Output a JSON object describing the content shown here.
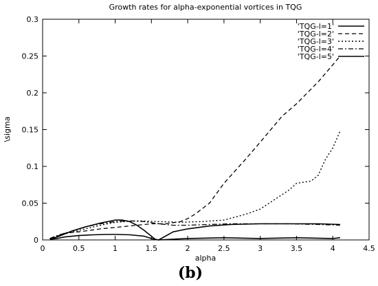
{
  "chart_data": {
    "type": "line",
    "title": "Growth rates for alpha-exponential vortices in TQG",
    "xlabel": "alpha",
    "ylabel": "\\sigma",
    "panel_label": "(b)",
    "xlim": [
      0,
      4.5
    ],
    "ylim": [
      0,
      0.3
    ],
    "xticks": [
      "0",
      "0.5",
      "1",
      "1.5",
      "2",
      "2.5",
      "3",
      "3.5",
      "4",
      "4.5"
    ],
    "yticks": [
      "0",
      "0.05",
      "0.1",
      "0.15",
      "0.2",
      "0.25",
      "0.3"
    ],
    "xtick_values": [
      0,
      0.5,
      1,
      1.5,
      2,
      2.5,
      3,
      3.5,
      4,
      4.5
    ],
    "ytick_values": [
      0,
      0.05,
      0.1,
      0.15,
      0.2,
      0.25,
      0.3
    ],
    "legend_position": "top-right",
    "series": [
      {
        "name": "'TQG-l=1'",
        "dash": "solid",
        "x": [
          0.1,
          0.2,
          0.3,
          0.5,
          0.7,
          0.9,
          1.0,
          1.2,
          1.4,
          1.5,
          1.55,
          1.6,
          1.8,
          2.0,
          2.5,
          3.0,
          3.5,
          4.0,
          4.1
        ],
        "y": [
          0.001,
          0.002,
          0.004,
          0.006,
          0.007,
          0.0075,
          0.0075,
          0.007,
          0.005,
          0.002,
          0.0005,
          0.0,
          0.001,
          0.002,
          0.003,
          0.002,
          0.003,
          0.002,
          0.003
        ]
      },
      {
        "name": "'TQG-l=2'",
        "dash": "dashed",
        "x": [
          0.1,
          0.2,
          0.3,
          0.5,
          0.8,
          1.0,
          1.3,
          1.5,
          1.7,
          1.9,
          2.0,
          2.1,
          2.3,
          2.5,
          2.8,
          3.0,
          3.3,
          3.5,
          3.8,
          4.0,
          4.1
        ],
        "y": [
          0.002,
          0.005,
          0.009,
          0.011,
          0.015,
          0.017,
          0.02,
          0.022,
          0.022,
          0.025,
          0.029,
          0.035,
          0.05,
          0.077,
          0.11,
          0.133,
          0.168,
          0.185,
          0.215,
          0.238,
          0.25
        ]
      },
      {
        "name": "'TQG-l=3'",
        "dash": "dotted",
        "x": [
          0.1,
          0.3,
          0.5,
          0.8,
          1.0,
          1.3,
          1.6,
          1.9,
          2.2,
          2.5,
          2.8,
          3.0,
          3.2,
          3.4,
          3.5,
          3.7,
          3.8,
          3.9,
          4.0,
          4.1
        ],
        "y": [
          0.002,
          0.008,
          0.013,
          0.02,
          0.024,
          0.026,
          0.025,
          0.024,
          0.025,
          0.027,
          0.035,
          0.042,
          0.055,
          0.068,
          0.077,
          0.08,
          0.088,
          0.11,
          0.125,
          0.148
        ]
      },
      {
        "name": "'TQG-l=4'",
        "dash": "dashdot",
        "x": [
          0.1,
          0.2,
          0.4,
          0.6,
          0.8,
          1.0,
          1.2,
          1.4,
          1.6,
          1.8,
          2.0,
          2.3,
          2.6,
          3.0,
          3.4,
          3.8,
          4.1
        ],
        "y": [
          0.002,
          0.006,
          0.012,
          0.018,
          0.022,
          0.025,
          0.026,
          0.025,
          0.022,
          0.02,
          0.02,
          0.021,
          0.022,
          0.022,
          0.022,
          0.021,
          0.02
        ]
      },
      {
        "name": "'TQG-l=5'",
        "dash": "solid",
        "x": [
          0.1,
          0.2,
          0.4,
          0.6,
          0.8,
          1.0,
          1.1,
          1.2,
          1.3,
          1.4,
          1.5,
          1.55,
          1.6,
          1.8,
          2.0,
          2.3,
          2.6,
          3.0,
          3.4,
          3.8,
          4.1
        ],
        "y": [
          0.001,
          0.004,
          0.012,
          0.018,
          0.023,
          0.027,
          0.027,
          0.025,
          0.02,
          0.013,
          0.005,
          0.001,
          0.0,
          0.011,
          0.015,
          0.019,
          0.021,
          0.022,
          0.022,
          0.022,
          0.021
        ]
      }
    ]
  }
}
